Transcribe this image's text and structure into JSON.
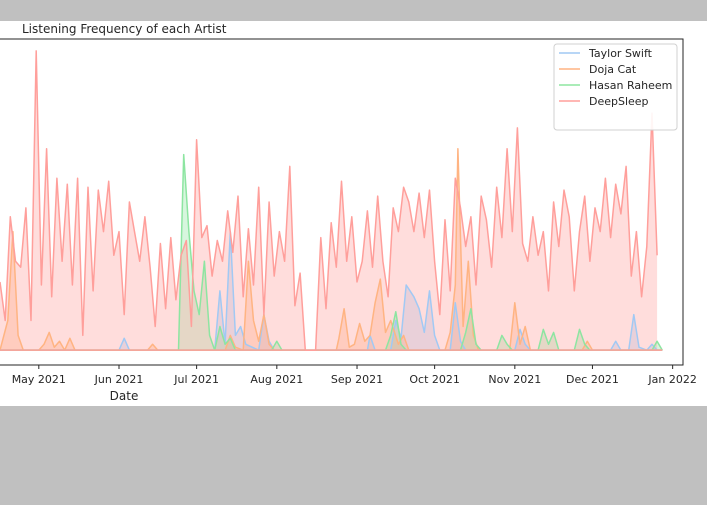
{
  "chart_data": {
    "type": "area",
    "title": "Listening Frequency of each Artist",
    "xlabel": "Date",
    "ylabel": "",
    "x_range": [
      "2021-04-16",
      "2022-01-05"
    ],
    "x_ticks": [
      "May 2021",
      "Jun 2021",
      "Jul 2021",
      "Aug 2021",
      "Sep 2021",
      "Oct 2021",
      "Nov 2021",
      "Dec 2021",
      "Jan 2022"
    ],
    "ylim": [
      -5,
      105
    ],
    "grid": false,
    "legend_position": "top-right",
    "colors": {
      "Taylor Swift": "#a1c9f4",
      "Doja Cat": "#ffb482",
      "Hasan Raheem": "#8de5a1",
      "DeepSleep": "#ff9f9b"
    },
    "series": [
      {
        "name": "Taylor Swift",
        "points": [
          [
            "2021-06-01",
            0
          ],
          [
            "2021-06-03",
            4
          ],
          [
            "2021-06-05",
            0
          ],
          [
            "2021-07-08",
            0
          ],
          [
            "2021-07-10",
            20
          ],
          [
            "2021-07-12",
            2
          ],
          [
            "2021-07-14",
            40
          ],
          [
            "2021-07-16",
            5
          ],
          [
            "2021-07-18",
            8
          ],
          [
            "2021-07-20",
            2
          ],
          [
            "2021-07-25",
            0
          ],
          [
            "2021-07-27",
            12
          ],
          [
            "2021-07-29",
            3
          ],
          [
            "2021-07-31",
            0
          ],
          [
            "2021-09-05",
            0
          ],
          [
            "2021-09-06",
            5
          ],
          [
            "2021-09-08",
            0
          ],
          [
            "2021-09-14",
            0
          ],
          [
            "2021-09-16",
            10
          ],
          [
            "2021-09-18",
            4
          ],
          [
            "2021-09-20",
            22
          ],
          [
            "2021-09-23",
            18
          ],
          [
            "2021-09-25",
            14
          ],
          [
            "2021-09-27",
            6
          ],
          [
            "2021-09-29",
            20
          ],
          [
            "2021-10-01",
            5
          ],
          [
            "2021-10-03",
            0
          ],
          [
            "2021-10-07",
            0
          ],
          [
            "2021-10-09",
            16
          ],
          [
            "2021-10-11",
            3
          ],
          [
            "2021-10-13",
            0
          ],
          [
            "2021-11-01",
            0
          ],
          [
            "2021-11-03",
            7
          ],
          [
            "2021-11-05",
            2
          ],
          [
            "2021-11-07",
            0
          ],
          [
            "2021-12-08",
            0
          ],
          [
            "2021-12-10",
            3
          ],
          [
            "2021-12-12",
            0
          ],
          [
            "2021-12-15",
            0
          ],
          [
            "2021-12-17",
            12
          ],
          [
            "2021-12-19",
            1
          ],
          [
            "2021-12-22",
            0
          ],
          [
            "2021-12-24",
            2
          ],
          [
            "2021-12-26",
            0
          ]
        ]
      },
      {
        "name": "Doja Cat",
        "points": [
          [
            "2021-04-16",
            0
          ],
          [
            "2021-04-19",
            10
          ],
          [
            "2021-04-21",
            40
          ],
          [
            "2021-04-23",
            5
          ],
          [
            "2021-04-25",
            0
          ],
          [
            "2021-05-01",
            0
          ],
          [
            "2021-05-03",
            2
          ],
          [
            "2021-05-05",
            6
          ],
          [
            "2021-05-07",
            1
          ],
          [
            "2021-05-09",
            3
          ],
          [
            "2021-05-11",
            0
          ],
          [
            "2021-05-13",
            4
          ],
          [
            "2021-05-15",
            0
          ],
          [
            "2021-06-12",
            0
          ],
          [
            "2021-06-14",
            2
          ],
          [
            "2021-06-16",
            0
          ],
          [
            "2021-07-12",
            0
          ],
          [
            "2021-07-14",
            5
          ],
          [
            "2021-07-16",
            1
          ],
          [
            "2021-07-19",
            0
          ],
          [
            "2021-07-21",
            30
          ],
          [
            "2021-07-23",
            10
          ],
          [
            "2021-07-25",
            3
          ],
          [
            "2021-07-27",
            12
          ],
          [
            "2021-07-29",
            2
          ],
          [
            "2021-07-31",
            0
          ],
          [
            "2021-08-24",
            0
          ],
          [
            "2021-08-25",
            4
          ],
          [
            "2021-08-27",
            14
          ],
          [
            "2021-08-29",
            1
          ],
          [
            "2021-08-31",
            2
          ],
          [
            "2021-09-02",
            9
          ],
          [
            "2021-09-04",
            3
          ],
          [
            "2021-09-06",
            5
          ],
          [
            "2021-09-08",
            16
          ],
          [
            "2021-09-10",
            24
          ],
          [
            "2021-09-12",
            6
          ],
          [
            "2021-09-14",
            10
          ],
          [
            "2021-09-17",
            2
          ],
          [
            "2021-09-19",
            5
          ],
          [
            "2021-09-21",
            0
          ],
          [
            "2021-10-05",
            0
          ],
          [
            "2021-10-07",
            6
          ],
          [
            "2021-10-09",
            22
          ],
          [
            "2021-10-10",
            68
          ],
          [
            "2021-10-12",
            8
          ],
          [
            "2021-10-14",
            30
          ],
          [
            "2021-10-16",
            5
          ],
          [
            "2021-10-18",
            0
          ],
          [
            "2021-10-30",
            0
          ],
          [
            "2021-11-01",
            16
          ],
          [
            "2021-11-03",
            2
          ],
          [
            "2021-11-05",
            8
          ],
          [
            "2021-11-07",
            0
          ],
          [
            "2021-11-27",
            0
          ],
          [
            "2021-11-29",
            3
          ],
          [
            "2021-12-01",
            0
          ]
        ]
      },
      {
        "name": "Hasan Raheem",
        "points": [
          [
            "2021-06-24",
            0
          ],
          [
            "2021-06-26",
            66
          ],
          [
            "2021-06-28",
            40
          ],
          [
            "2021-06-30",
            20
          ],
          [
            "2021-07-02",
            12
          ],
          [
            "2021-07-04",
            30
          ],
          [
            "2021-07-06",
            5
          ],
          [
            "2021-07-08",
            0
          ],
          [
            "2021-07-10",
            8
          ],
          [
            "2021-07-12",
            2
          ],
          [
            "2021-07-14",
            4
          ],
          [
            "2021-07-16",
            0
          ],
          [
            "2021-07-30",
            0
          ],
          [
            "2021-08-01",
            3
          ],
          [
            "2021-08-03",
            0
          ],
          [
            "2021-09-12",
            0
          ],
          [
            "2021-09-14",
            5
          ],
          [
            "2021-09-16",
            13
          ],
          [
            "2021-09-18",
            2
          ],
          [
            "2021-09-20",
            0
          ],
          [
            "2021-10-11",
            0
          ],
          [
            "2021-10-13",
            6
          ],
          [
            "2021-10-15",
            14
          ],
          [
            "2021-10-17",
            2
          ],
          [
            "2021-10-19",
            0
          ],
          [
            "2021-10-25",
            0
          ],
          [
            "2021-10-27",
            5
          ],
          [
            "2021-10-29",
            2
          ],
          [
            "2021-10-31",
            0
          ],
          [
            "2021-11-10",
            0
          ],
          [
            "2021-11-12",
            7
          ],
          [
            "2021-11-14",
            2
          ],
          [
            "2021-11-16",
            6
          ],
          [
            "2021-11-18",
            0
          ],
          [
            "2021-11-24",
            0
          ],
          [
            "2021-11-26",
            7
          ],
          [
            "2021-11-28",
            2
          ],
          [
            "2021-11-30",
            0
          ],
          [
            "2021-12-24",
            0
          ],
          [
            "2021-12-26",
            3
          ],
          [
            "2021-12-28",
            0
          ]
        ]
      },
      {
        "name": "DeepSleep",
        "points": [
          [
            "2021-04-16",
            23
          ],
          [
            "2021-04-18",
            10
          ],
          [
            "2021-04-20",
            45
          ],
          [
            "2021-04-22",
            30
          ],
          [
            "2021-04-24",
            28
          ],
          [
            "2021-04-26",
            48
          ],
          [
            "2021-04-28",
            10
          ],
          [
            "2021-04-30",
            101
          ],
          [
            "2021-05-02",
            22
          ],
          [
            "2021-05-04",
            68
          ],
          [
            "2021-05-06",
            18
          ],
          [
            "2021-05-08",
            58
          ],
          [
            "2021-05-10",
            30
          ],
          [
            "2021-05-12",
            56
          ],
          [
            "2021-05-14",
            22
          ],
          [
            "2021-05-16",
            58
          ],
          [
            "2021-05-18",
            5
          ],
          [
            "2021-05-20",
            55
          ],
          [
            "2021-05-22",
            20
          ],
          [
            "2021-05-24",
            54
          ],
          [
            "2021-05-26",
            40
          ],
          [
            "2021-05-28",
            57
          ],
          [
            "2021-05-30",
            32
          ],
          [
            "2021-06-01",
            40
          ],
          [
            "2021-06-03",
            12
          ],
          [
            "2021-06-05",
            50
          ],
          [
            "2021-06-07",
            40
          ],
          [
            "2021-06-09",
            30
          ],
          [
            "2021-06-11",
            45
          ],
          [
            "2021-06-13",
            28
          ],
          [
            "2021-06-15",
            8
          ],
          [
            "2021-06-17",
            36
          ],
          [
            "2021-06-19",
            14
          ],
          [
            "2021-06-21",
            38
          ],
          [
            "2021-06-23",
            17
          ],
          [
            "2021-06-25",
            32
          ],
          [
            "2021-06-27",
            37
          ],
          [
            "2021-06-29",
            8
          ],
          [
            "2021-07-01",
            71
          ],
          [
            "2021-07-03",
            38
          ],
          [
            "2021-07-05",
            42
          ],
          [
            "2021-07-07",
            25
          ],
          [
            "2021-07-09",
            37
          ],
          [
            "2021-07-11",
            30
          ],
          [
            "2021-07-13",
            47
          ],
          [
            "2021-07-15",
            33
          ],
          [
            "2021-07-17",
            52
          ],
          [
            "2021-07-19",
            18
          ],
          [
            "2021-07-21",
            41
          ],
          [
            "2021-07-23",
            22
          ],
          [
            "2021-07-25",
            55
          ],
          [
            "2021-07-27",
            12
          ],
          [
            "2021-07-29",
            50
          ],
          [
            "2021-07-31",
            25
          ],
          [
            "2021-08-02",
            40
          ],
          [
            "2021-08-04",
            30
          ],
          [
            "2021-08-06",
            62
          ],
          [
            "2021-08-08",
            15
          ],
          [
            "2021-08-10",
            26
          ],
          [
            "2021-08-12",
            0
          ],
          [
            "2021-08-14",
            0
          ],
          [
            "2021-08-16",
            0
          ],
          [
            "2021-08-18",
            38
          ],
          [
            "2021-08-20",
            14
          ],
          [
            "2021-08-22",
            43
          ],
          [
            "2021-08-24",
            28
          ],
          [
            "2021-08-26",
            57
          ],
          [
            "2021-08-28",
            30
          ],
          [
            "2021-08-30",
            45
          ],
          [
            "2021-09-01",
            23
          ],
          [
            "2021-09-03",
            30
          ],
          [
            "2021-09-05",
            47
          ],
          [
            "2021-09-07",
            28
          ],
          [
            "2021-09-09",
            52
          ],
          [
            "2021-09-11",
            30
          ],
          [
            "2021-09-13",
            18
          ],
          [
            "2021-09-15",
            48
          ],
          [
            "2021-09-17",
            40
          ],
          [
            "2021-09-19",
            55
          ],
          [
            "2021-09-21",
            50
          ],
          [
            "2021-09-23",
            40
          ],
          [
            "2021-09-25",
            53
          ],
          [
            "2021-09-27",
            38
          ],
          [
            "2021-09-29",
            54
          ],
          [
            "2021-10-01",
            30
          ],
          [
            "2021-10-03",
            12
          ],
          [
            "2021-10-05",
            44
          ],
          [
            "2021-10-07",
            20
          ],
          [
            "2021-10-09",
            58
          ],
          [
            "2021-10-11",
            48
          ],
          [
            "2021-10-13",
            35
          ],
          [
            "2021-10-15",
            45
          ],
          [
            "2021-10-17",
            22
          ],
          [
            "2021-10-19",
            52
          ],
          [
            "2021-10-21",
            44
          ],
          [
            "2021-10-23",
            28
          ],
          [
            "2021-10-25",
            55
          ],
          [
            "2021-10-27",
            38
          ],
          [
            "2021-10-29",
            68
          ],
          [
            "2021-10-31",
            40
          ],
          [
            "2021-11-02",
            75
          ],
          [
            "2021-11-04",
            36
          ],
          [
            "2021-11-06",
            30
          ],
          [
            "2021-11-08",
            45
          ],
          [
            "2021-11-10",
            32
          ],
          [
            "2021-11-12",
            40
          ],
          [
            "2021-11-14",
            20
          ],
          [
            "2021-11-16",
            50
          ],
          [
            "2021-11-18",
            35
          ],
          [
            "2021-11-20",
            54
          ],
          [
            "2021-11-22",
            45
          ],
          [
            "2021-11-24",
            20
          ],
          [
            "2021-11-26",
            40
          ],
          [
            "2021-11-28",
            52
          ],
          [
            "2021-11-30",
            30
          ],
          [
            "2021-12-02",
            48
          ],
          [
            "2021-12-04",
            40
          ],
          [
            "2021-12-06",
            58
          ],
          [
            "2021-12-08",
            38
          ],
          [
            "2021-12-10",
            56
          ],
          [
            "2021-12-12",
            46
          ],
          [
            "2021-12-14",
            62
          ],
          [
            "2021-12-16",
            25
          ],
          [
            "2021-12-18",
            40
          ],
          [
            "2021-12-20",
            18
          ],
          [
            "2021-12-22",
            35
          ],
          [
            "2021-12-24",
            80
          ],
          [
            "2021-12-26",
            32
          ]
        ]
      }
    ]
  }
}
